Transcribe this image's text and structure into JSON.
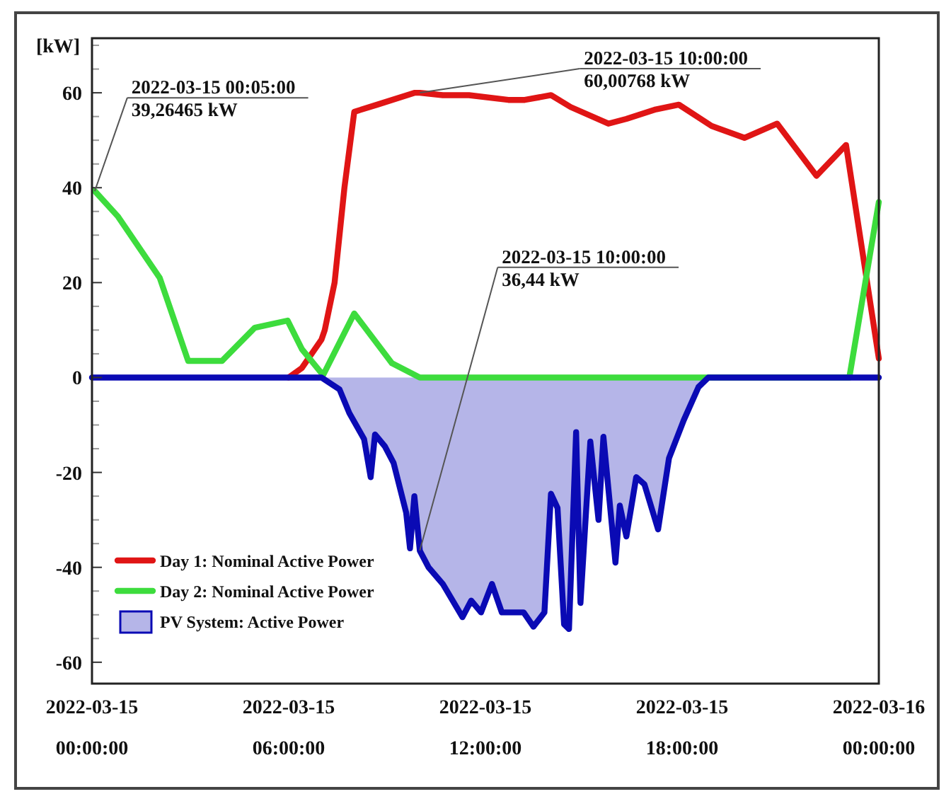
{
  "chart_data": {
    "type": "line",
    "ylabel": "[kW]",
    "xlim": [
      "2022-03-15T00:00",
      "2022-03-16T00:00"
    ],
    "xticks": [
      {
        "value": "2022-03-15T00:00",
        "label": "2022-03-15\n00:00:00"
      },
      {
        "value": "2022-03-15T06:00",
        "label": "2022-03-15\n06:00:00"
      },
      {
        "value": "2022-03-15T12:00",
        "label": "2022-03-15\n12:00:00"
      },
      {
        "value": "2022-03-15T18:00",
        "label": "2022-03-15\n18:00:00"
      },
      {
        "value": "2022-03-16T00:00",
        "label": "2022-03-16\n00:00:00"
      }
    ],
    "ylim": [
      -64.5,
      71.5
    ],
    "yticks": [
      -60,
      {
        "value": -55,
        "label": null
      },
      {
        "value": -50,
        "label": null
      },
      {
        "value": -45,
        "label": null
      },
      -40,
      {
        "value": -35,
        "label": null
      },
      {
        "value": -30,
        "label": null
      },
      {
        "value": -25,
        "label": null
      },
      -20,
      {
        "value": -15,
        "label": null
      },
      {
        "value": -10,
        "label": null
      },
      {
        "value": -5,
        "label": null
      },
      0,
      {
        "value": 5,
        "label": null
      },
      {
        "value": 10,
        "label": null
      },
      {
        "value": 15,
        "label": null
      },
      20,
      {
        "value": 25,
        "label": null
      },
      {
        "value": 30,
        "label": null
      },
      {
        "value": 35,
        "label": null
      },
      40,
      {
        "value": 45,
        "label": null
      },
      {
        "value": 50,
        "label": null
      },
      {
        "value": 55,
        "label": null
      },
      60,
      {
        "value": 65,
        "label": null
      },
      {
        "value": 70,
        "label": null
      }
    ],
    "legend": "bottom left",
    "series": [
      {
        "name": "Day 1: Nominal Active Power",
        "color": "#e01515",
        "x": [
          "2022-03-15T06:00",
          "2022-03-15T06:24",
          "2022-03-15T07:00",
          "2022-03-15T07:06",
          "2022-03-15T07:24",
          "2022-03-15T07:42",
          "2022-03-15T08:00",
          "2022-03-15T08:42",
          "2022-03-15T09:51",
          "2022-03-15T10:00",
          "2022-03-15T10:42",
          "2022-03-15T11:30",
          "2022-03-15T12:42",
          "2022-03-15T13:12",
          "2022-03-15T14:00",
          "2022-03-15T14:36",
          "2022-03-15T15:45",
          "2022-03-15T16:18",
          "2022-03-15T17:12",
          "2022-03-15T17:54",
          "2022-03-15T18:54",
          "2022-03-15T19:54",
          "2022-03-15T20:54",
          "2022-03-15T22:06",
          "2022-03-15T23:00",
          "2022-03-16T00:00"
        ],
        "values": [
          0,
          2,
          8,
          10,
          20,
          40,
          56,
          57.5,
          60,
          60,
          59.5,
          59.5,
          58.5,
          58.5,
          59.5,
          57,
          53.5,
          54.5,
          56.5,
          57.5,
          53,
          50.5,
          53.5,
          42.5,
          49,
          4
        ]
      },
      {
        "name": "Day 2: Nominal Active Power",
        "color": "#3ddc3d",
        "x": [
          "2022-03-15T00:05",
          "2022-03-15T00:47",
          "2022-03-15T02:04",
          "2022-03-15T02:56",
          "2022-03-15T03:58",
          "2022-03-15T04:58",
          "2022-03-15T05:58",
          "2022-03-15T06:24",
          "2022-03-15T07:03",
          "2022-03-15T08:00",
          "2022-03-15T09:09",
          "2022-03-15T10:00",
          "2022-03-15T23:06",
          "2022-03-16T00:00"
        ],
        "values": [
          39.3,
          34,
          21,
          3.5,
          3.5,
          10.5,
          12,
          6,
          0.5,
          13.5,
          3,
          0,
          0,
          37
        ]
      },
      {
        "name": "PV System: Active Power",
        "type": "area",
        "color": "#0a0ab4",
        "x": [
          "2022-03-15T00:00",
          "2022-03-15T07:00",
          "2022-03-15T07:33",
          "2022-03-15T07:51",
          "2022-03-15T08:18",
          "2022-03-15T08:30",
          "2022-03-15T08:38",
          "2022-03-15T08:56",
          "2022-03-15T09:12",
          "2022-03-15T09:35",
          "2022-03-15T09:42",
          "2022-03-15T09:50",
          "2022-03-15T10:00",
          "2022-03-15T10:16",
          "2022-03-15T10:42",
          "2022-03-15T11:18",
          "2022-03-15T11:34",
          "2022-03-15T11:52",
          "2022-03-15T12:12",
          "2022-03-15T12:30",
          "2022-03-15T13:10",
          "2022-03-15T13:28",
          "2022-03-15T13:48",
          "2022-03-15T14:00",
          "2022-03-15T14:12",
          "2022-03-15T14:24",
          "2022-03-15T14:33",
          "2022-03-15T14:46",
          "2022-03-15T14:54",
          "2022-03-15T15:12",
          "2022-03-15T15:27",
          "2022-03-15T15:36",
          "2022-03-15T15:58",
          "2022-03-15T16:06",
          "2022-03-15T16:18",
          "2022-03-15T16:36",
          "2022-03-15T16:51",
          "2022-03-15T17:16",
          "2022-03-15T17:36",
          "2022-03-15T18:03",
          "2022-03-15T18:30",
          "2022-03-15T18:48",
          "2022-03-16T00:00"
        ],
        "values": [
          0,
          0,
          -2.5,
          -7.5,
          -13,
          -21,
          -12,
          -14.5,
          -18,
          -28.5,
          -36,
          -25,
          -36.5,
          -40,
          -43.5,
          -50.5,
          -47,
          -49.5,
          -43.5,
          -49.5,
          -49.5,
          -52.5,
          -49.5,
          -24.5,
          -27.5,
          -52,
          -53,
          -11.5,
          -47.5,
          -13.5,
          -30,
          -12.5,
          -39,
          -27,
          -33.5,
          -21,
          -22.5,
          -32,
          -17,
          -9,
          -2,
          0,
          0
        ]
      }
    ],
    "annotations": [
      {
        "text": "2022-03-15 00:05:00\n39,26465 kW",
        "x": "2022-03-15T00:05",
        "y": 39.26465
      },
      {
        "text": "2022-03-15 10:00:00\n60,00768 kW",
        "x": "2022-03-15T10:00",
        "y": 60.00768
      },
      {
        "text": "2022-03-15 10:00:00\n36,44 kW",
        "x": "2022-03-15T10:00",
        "y": -36.44
      }
    ]
  }
}
